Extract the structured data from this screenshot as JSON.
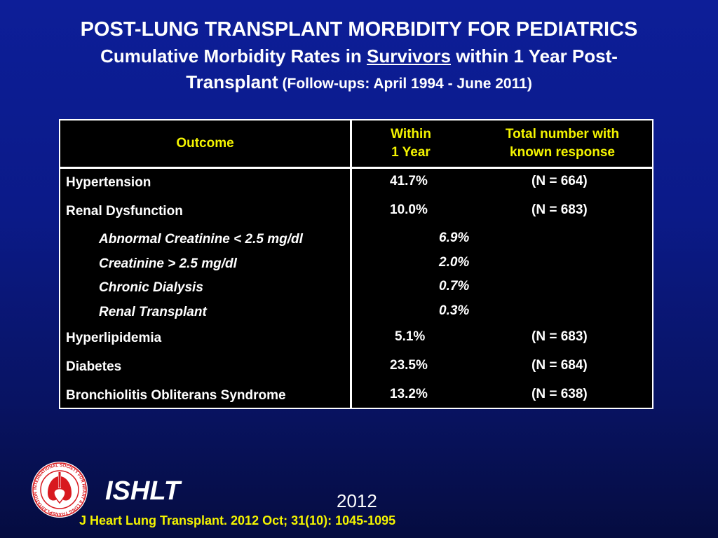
{
  "title": {
    "line1": "POST-LUNG TRANSPLANT MORBIDITY FOR PEDIATRICS",
    "line2_pre": "Cumulative Morbidity Rates in ",
    "line2_u": "Survivors",
    "line2_post": " within 1 Year Post-",
    "line3_main": "Transplant",
    "line3_small": " (Follow-ups: April 1994 - June 2011)"
  },
  "table": {
    "headers": {
      "outcome": "Outcome",
      "within_l1": "Within",
      "within_l2": "1 Year",
      "total_l1": "Total number with",
      "total_l2": "known response"
    },
    "rows": [
      {
        "label": "Hypertension",
        "value": "41.7%",
        "n": "(N = 664)"
      },
      {
        "label": "Renal Dysfunction",
        "value": "10.0%",
        "n": "(N = 683)"
      },
      {
        "label": "Abnormal Creatinine < 2.5 mg/dl",
        "value": "6.9%",
        "n": ""
      },
      {
        "label": "Creatinine > 2.5 mg/dl",
        "value": "2.0%",
        "n": ""
      },
      {
        "label": "Chronic Dialysis",
        "value": "0.7%",
        "n": ""
      },
      {
        "label": "Renal Transplant",
        "value": "0.3%",
        "n": ""
      },
      {
        "label": "Hyperlipidemia",
        "value": "5.1%",
        "n": "(N = 683)"
      },
      {
        "label": "Diabetes",
        "value": "23.5%",
        "n": "(N = 684)"
      },
      {
        "label": "Bronchiolitis Obliterans Syndrome",
        "value": "13.2%",
        "n": "(N = 638)"
      }
    ]
  },
  "footer": {
    "logo_text": "INTERNATIONAL SOCIETY FOR HEART & LUNG TRANSPLANTATION",
    "org": "ISHLT",
    "year": "2012",
    "citation": "J Heart Lung Transplant.  2012 Oct; 31(10): 1045-1095"
  },
  "colors": {
    "header_text": "#f4f400",
    "citation_text": "#f4f400",
    "logo_red": "#d8191f"
  }
}
